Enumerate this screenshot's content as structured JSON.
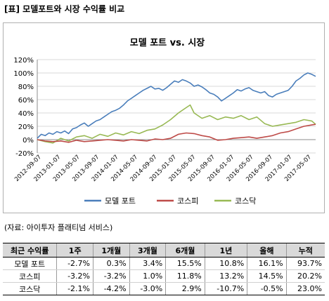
{
  "header": {
    "title": "[표] 모델포트와 시장 수익률 비교"
  },
  "chart_data": {
    "type": "line",
    "title": "모델 포트 vs. 시장",
    "ylim": [
      -20,
      120
    ],
    "yticks": [
      "-20%",
      "0%",
      "20%",
      "40%",
      "60%",
      "80%",
      "100%",
      "120%"
    ],
    "ytick_values": [
      -20,
      0,
      20,
      40,
      60,
      80,
      100,
      120
    ],
    "xticks": [
      "2012-09-07",
      "2013-01-07",
      "2013-05-07",
      "2013-09-07",
      "2014-01-07",
      "2014-05-07",
      "2014-09-07",
      "2015-01-07",
      "2015-05-07",
      "2015-09-07",
      "2016-01-07",
      "2016-05-07",
      "2016-09-07",
      "2017-01-07",
      "2017-05-07"
    ],
    "grid": true,
    "legend_position": "bottom",
    "series": [
      {
        "name": "모델 포트",
        "color": "#4a7ebb",
        "points": [
          [
            0,
            2
          ],
          [
            1,
            8
          ],
          [
            2,
            6
          ],
          [
            3,
            10
          ],
          [
            4,
            8
          ],
          [
            5,
            12
          ],
          [
            6,
            10
          ],
          [
            7,
            13
          ],
          [
            8,
            9
          ],
          [
            9,
            16
          ],
          [
            10,
            18
          ],
          [
            11,
            22
          ],
          [
            12,
            25
          ],
          [
            13,
            20
          ],
          [
            14,
            24
          ],
          [
            15,
            28
          ],
          [
            16,
            30
          ],
          [
            17,
            34
          ],
          [
            18,
            38
          ],
          [
            19,
            42
          ],
          [
            20,
            44
          ],
          [
            21,
            47
          ],
          [
            22,
            52
          ],
          [
            23,
            58
          ],
          [
            24,
            62
          ],
          [
            25,
            66
          ],
          [
            26,
            70
          ],
          [
            27,
            74
          ],
          [
            28,
            77
          ],
          [
            29,
            80
          ],
          [
            30,
            76
          ],
          [
            31,
            77
          ],
          [
            32,
            74
          ],
          [
            33,
            78
          ],
          [
            34,
            83
          ],
          [
            35,
            88
          ],
          [
            36,
            86
          ],
          [
            37,
            90
          ],
          [
            38,
            88
          ],
          [
            39,
            85
          ],
          [
            40,
            80
          ],
          [
            41,
            82
          ],
          [
            42,
            79
          ],
          [
            43,
            75
          ],
          [
            44,
            70
          ],
          [
            45,
            68
          ],
          [
            46,
            64
          ],
          [
            47,
            58
          ],
          [
            48,
            62
          ],
          [
            49,
            66
          ],
          [
            50,
            70
          ],
          [
            51,
            75
          ],
          [
            52,
            73
          ],
          [
            53,
            76
          ],
          [
            54,
            78
          ],
          [
            55,
            74
          ],
          [
            56,
            72
          ],
          [
            57,
            70
          ],
          [
            58,
            72
          ],
          [
            59,
            66
          ],
          [
            60,
            64
          ],
          [
            61,
            68
          ],
          [
            62,
            70
          ],
          [
            63,
            72
          ],
          [
            64,
            74
          ],
          [
            65,
            80
          ],
          [
            66,
            88
          ],
          [
            67,
            92
          ],
          [
            68,
            97
          ],
          [
            69,
            100
          ],
          [
            70,
            98
          ],
          [
            71,
            95
          ]
        ]
      },
      {
        "name": "코스피",
        "color": "#be4b48",
        "points": [
          [
            0,
            0
          ],
          [
            2,
            -2
          ],
          [
            4,
            -3
          ],
          [
            6,
            -2
          ],
          [
            8,
            -4
          ],
          [
            10,
            -1
          ],
          [
            12,
            -3
          ],
          [
            14,
            -2
          ],
          [
            16,
            -1
          ],
          [
            18,
            0
          ],
          [
            20,
            -1
          ],
          [
            22,
            -2
          ],
          [
            24,
            0
          ],
          [
            26,
            -1
          ],
          [
            28,
            -2
          ],
          [
            30,
            1
          ],
          [
            32,
            0
          ],
          [
            34,
            2
          ],
          [
            36,
            8
          ],
          [
            38,
            10
          ],
          [
            40,
            9
          ],
          [
            42,
            6
          ],
          [
            44,
            4
          ],
          [
            46,
            -1
          ],
          [
            48,
            0
          ],
          [
            50,
            2
          ],
          [
            52,
            3
          ],
          [
            54,
            4
          ],
          [
            56,
            2
          ],
          [
            58,
            4
          ],
          [
            60,
            6
          ],
          [
            62,
            10
          ],
          [
            64,
            12
          ],
          [
            66,
            16
          ],
          [
            68,
            20
          ],
          [
            70,
            22
          ],
          [
            71,
            23
          ]
        ]
      },
      {
        "name": "코스닥",
        "color": "#98b954",
        "points": [
          [
            0,
            0
          ],
          [
            2,
            -3
          ],
          [
            4,
            -5
          ],
          [
            6,
            2
          ],
          [
            8,
            -2
          ],
          [
            10,
            4
          ],
          [
            12,
            6
          ],
          [
            14,
            2
          ],
          [
            16,
            8
          ],
          [
            18,
            5
          ],
          [
            20,
            10
          ],
          [
            22,
            7
          ],
          [
            24,
            12
          ],
          [
            26,
            9
          ],
          [
            28,
            14
          ],
          [
            30,
            16
          ],
          [
            32,
            22
          ],
          [
            34,
            30
          ],
          [
            36,
            40
          ],
          [
            38,
            48
          ],
          [
            39,
            52
          ],
          [
            40,
            40
          ],
          [
            42,
            32
          ],
          [
            44,
            36
          ],
          [
            46,
            30
          ],
          [
            48,
            34
          ],
          [
            50,
            32
          ],
          [
            52,
            36
          ],
          [
            54,
            30
          ],
          [
            56,
            34
          ],
          [
            58,
            24
          ],
          [
            60,
            20
          ],
          [
            62,
            22
          ],
          [
            64,
            24
          ],
          [
            66,
            26
          ],
          [
            68,
            30
          ],
          [
            70,
            28
          ],
          [
            71,
            23
          ]
        ]
      }
    ]
  },
  "source_note": "(자료: 아이투자 플래티넘 서비스)",
  "table": {
    "headers": [
      "최근 수익률",
      "1주",
      "1개월",
      "3개월",
      "6개월",
      "1년",
      "올해",
      "누적"
    ],
    "rows": [
      [
        "모델 포트",
        "-2.7%",
        "0.3%",
        "3.4%",
        "15.5%",
        "10.8%",
        "16.1%",
        "93.7%"
      ],
      [
        "코스피",
        "-3.2%",
        "-3.2%",
        "1.0%",
        "11.8%",
        "13.2%",
        "14.5%",
        "20.2%"
      ],
      [
        "코스닥",
        "-2.1%",
        "-4.2%",
        "-3.0%",
        "2.9%",
        "-10.7%",
        "-0.5%",
        "23.0%"
      ]
    ]
  }
}
